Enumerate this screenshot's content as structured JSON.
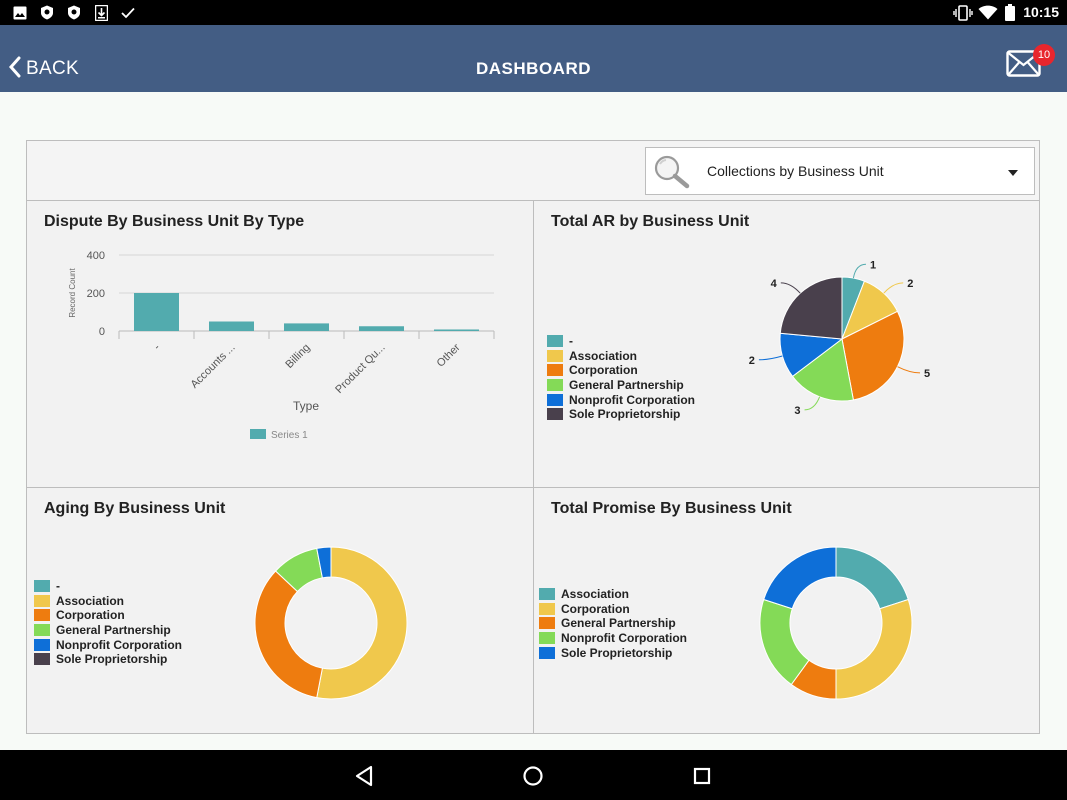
{
  "status_bar": {
    "time": "10:15",
    "icons": [
      "image-icon",
      "shield-icon",
      "shield-icon",
      "download-icon",
      "check-icon"
    ],
    "right_icons": [
      "vibrate-icon",
      "wifi-icon",
      "battery-icon"
    ]
  },
  "app_bar": {
    "back_label": "BACK",
    "title": "DASHBOARD",
    "mail_badge": "10"
  },
  "selector": {
    "value": "Collections by Business Unit"
  },
  "colors": {
    "teal": "#52abae",
    "yellow": "#f0c84c",
    "orange": "#ee7c0f",
    "green": "#84da57",
    "blue": "#0e6fd8",
    "dark": "#49404c"
  },
  "charts": {
    "dispute": {
      "title": "Dispute By Business Unit By Type",
      "chart_data": {
        "type": "bar",
        "categories": [
          "-",
          "Accounts ...",
          "Billing",
          "Product Qu...",
          "Other"
        ],
        "series": [
          {
            "name": "Series 1",
            "values": [
              200,
              50,
              40,
              25,
              8
            ]
          }
        ],
        "xlabel": "Type",
        "ylabel": "Record Count",
        "yticks": [
          0,
          200,
          400
        ],
        "ylim": [
          0,
          400
        ],
        "grid": true,
        "legend": "bottom"
      }
    },
    "total_ar": {
      "title": "Total AR by Business Unit",
      "legend": [
        "-",
        "Association",
        "Corporation",
        "General Partnership",
        "Nonprofit Corporation",
        "Sole Proprietorship"
      ],
      "chart_data": {
        "type": "pie",
        "labels": [
          "-",
          "Association",
          "Corporation",
          "General Partnership",
          "Nonprofit Corporation",
          "Sole Proprietorship"
        ],
        "values": [
          1,
          2,
          5,
          3,
          2,
          4
        ],
        "data_labels": [
          "1",
          "2",
          "5",
          "3",
          "2",
          "4"
        ],
        "legend": "left"
      }
    },
    "aging": {
      "title": "Aging By Business Unit",
      "legend": [
        "-",
        "Association",
        "Corporation",
        "General Partnership",
        "Nonprofit Corporation",
        "Sole Proprietorship"
      ],
      "chart_data": {
        "type": "pie",
        "donut": true,
        "labels": [
          "-",
          "Association",
          "Corporation",
          "General Partnership",
          "Nonprofit Corporation",
          "Sole Proprietorship"
        ],
        "values": [
          0,
          53,
          34,
          10,
          3,
          0
        ],
        "legend": "left"
      }
    },
    "promise": {
      "title": "Total Promise By Business Unit",
      "legend": [
        "Association",
        "Corporation",
        "General Partnership",
        "Nonprofit Corporation",
        "Sole Proprietorship"
      ],
      "chart_data": {
        "type": "pie",
        "donut": true,
        "labels": [
          "Association",
          "Corporation",
          "General Partnership",
          "Nonprofit Corporation",
          "Sole Proprietorship"
        ],
        "values": [
          20,
          30,
          10,
          20,
          20
        ],
        "legend": "left"
      }
    }
  },
  "nav_bar": {
    "buttons": [
      "back-triangle-icon",
      "home-circle-icon",
      "recents-square-icon"
    ]
  }
}
